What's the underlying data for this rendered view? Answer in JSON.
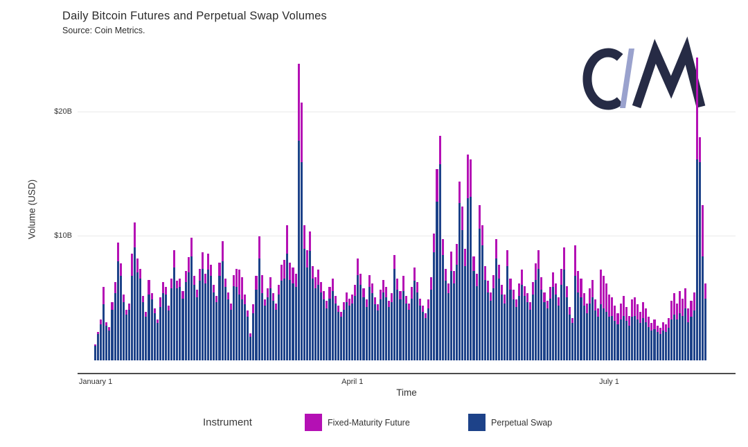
{
  "header": {
    "title": "Daily Bitcoin Futures and Perpetual Swap Volumes",
    "subtitle": "Source: Coin Metrics."
  },
  "logo": {
    "alt": "Coin Metrics monogram",
    "dark_color": "#262b45",
    "slash_color": "#9aa2cd"
  },
  "chart_data": {
    "type": "bar",
    "stacked": true,
    "title": "Daily Bitcoin Futures and Perpetual Swap Volumes",
    "subtitle": "Source: Coin Metrics.",
    "xlabel": "Time",
    "ylabel": "Volume (USD)",
    "unit": "billions of USD per day",
    "grid": "horizontal",
    "ylim": [
      0,
      24.6
    ],
    "x_ticks": [
      {
        "label": "January 1",
        "day_index": 0
      },
      {
        "label": "April 1",
        "day_index": 91
      },
      {
        "label": "July 1",
        "day_index": 182
      }
    ],
    "y_ticks": [
      {
        "label": "$10B",
        "value": 10
      },
      {
        "label": "$20B",
        "value": 20
      }
    ],
    "legend_title": "Instrument",
    "legend_position": "bottom",
    "series": [
      {
        "name": "Fixed-Maturity Future",
        "color": "#b410b4",
        "values": [
          0.1,
          0.2,
          0.4,
          1.4,
          0.3,
          0.3,
          0.6,
          0.9,
          1.5,
          1.0,
          0.6,
          0.4,
          0.5,
          1.8,
          2.0,
          1.1,
          0.8,
          0.5,
          0.4,
          1.2,
          0.5,
          0.4,
          0.3,
          0.8,
          0.9,
          0.6,
          0.4,
          0.8,
          1.4,
          0.6,
          0.7,
          0.6,
          0.9,
          1.2,
          1.5,
          0.7,
          0.6,
          1.0,
          1.3,
          0.8,
          1.3,
          0.9,
          0.6,
          0.5,
          1.1,
          1.6,
          0.7,
          0.6,
          0.5,
          0.9,
          1.5,
          2.0,
          1.8,
          0.8,
          0.5,
          0.3,
          0.7,
          1.1,
          1.8,
          1.5,
          0.5,
          0.7,
          0.9,
          0.6,
          0.5,
          0.8,
          1.3,
          1.5,
          2.3,
          1.4,
          1.3,
          1.1,
          6.2,
          4.8,
          1.9,
          1.4,
          1.6,
          1.0,
          0.9,
          1.2,
          0.8,
          0.7,
          0.6,
          0.9,
          1.0,
          0.6,
          0.5,
          0.4,
          0.6,
          0.8,
          0.6,
          0.7,
          0.9,
          1.3,
          0.9,
          0.7,
          0.6,
          1.0,
          0.8,
          0.6,
          0.5,
          0.8,
          1.0,
          0.8,
          0.5,
          0.7,
          1.1,
          0.9,
          0.7,
          1.2,
          0.6,
          0.5,
          0.9,
          1.1,
          0.8,
          0.6,
          0.5,
          0.4,
          0.7,
          1.0,
          1.5,
          2.6,
          2.3,
          1.3,
          1.0,
          0.8,
          1.6,
          1.0,
          1.7,
          1.7,
          1.9,
          1.4,
          3.5,
          3.0,
          1.2,
          1.0,
          1.9,
          1.6,
          1.1,
          0.9,
          0.7,
          1.1,
          1.6,
          1.1,
          0.8,
          0.7,
          1.3,
          0.9,
          0.8,
          0.6,
          1.0,
          1.2,
          0.8,
          0.7,
          0.6,
          1.0,
          1.3,
          1.5,
          1.0,
          0.8,
          0.6,
          0.9,
          1.2,
          0.9,
          0.7,
          1.3,
          1.8,
          0.9,
          0.6,
          0.4,
          2.5,
          1.7,
          1.5,
          1.0,
          0.8,
          1.2,
          1.4,
          0.9,
          0.7,
          2.8,
          2.6,
          2.3,
          1.8,
          1.5,
          1.2,
          0.9,
          1.3,
          1.6,
          1.1,
          0.8,
          1.4,
          1.5,
          1.2,
          0.9,
          1.3,
          1.1,
          0.8,
          0.6,
          0.8,
          0.5,
          0.5,
          0.7,
          0.6,
          0.8,
          1.5,
          1.7,
          1.3,
          1.8,
          1.4,
          1.6,
          1.1,
          1.3,
          1.5,
          8.2,
          2.0,
          4.1,
          1.2
        ]
      },
      {
        "name": "Perpetual Swap",
        "color": "#1d4289",
        "values": [
          1.2,
          2.1,
          2.9,
          4.5,
          2.8,
          2.4,
          4.1,
          5.4,
          8.0,
          6.8,
          4.7,
          3.7,
          4.1,
          6.8,
          9.1,
          7.1,
          6.6,
          4.7,
          3.5,
          5.3,
          4.9,
          3.8,
          3.0,
          4.3,
          5.4,
          5.3,
          4.0,
          5.8,
          7.5,
          5.8,
          5.9,
          5.0,
          6.3,
          7.1,
          8.4,
          6.1,
          5.1,
          6.4,
          7.4,
          6.2,
          7.3,
          6.8,
          5.5,
          4.7,
          6.8,
          8.0,
          5.9,
          4.9,
          4.1,
          6.0,
          5.9,
          5.3,
          4.9,
          4.5,
          3.5,
          1.9,
          3.8,
          5.7,
          8.2,
          5.4,
          4.4,
          5.1,
          5.8,
          4.8,
          4.1,
          5.3,
          6.4,
          6.6,
          8.6,
          6.5,
          6.2,
          5.9,
          17.7,
          16.0,
          9.0,
          7.5,
          8.8,
          6.6,
          5.8,
          6.1,
          5.5,
          4.9,
          4.2,
          5.0,
          5.6,
          4.6,
          3.9,
          3.5,
          4.1,
          4.7,
          4.4,
          4.6,
          5.2,
          6.9,
          6.1,
          5.1,
          4.3,
          5.9,
          5.4,
          4.5,
          4.0,
          4.9,
          5.5,
          5.1,
          4.3,
          4.7,
          7.4,
          5.7,
          4.9,
          5.6,
          4.6,
          4.1,
          5.0,
          6.4,
          5.5,
          4.4,
          3.9,
          3.4,
          4.2,
          5.7,
          8.7,
          12.8,
          15.8,
          8.5,
          6.4,
          5.4,
          7.2,
          6.2,
          7.7,
          12.7,
          10.5,
          7.6,
          13.1,
          13.2,
          7.2,
          6.0,
          10.6,
          9.3,
          6.5,
          5.5,
          4.8,
          5.8,
          8.2,
          6.6,
          5.3,
          4.6,
          7.6,
          5.7,
          4.9,
          4.3,
          5.2,
          6.1,
          5.2,
          4.7,
          4.1,
          5.3,
          6.5,
          7.4,
          5.7,
          4.7,
          4.2,
          5.0,
          5.9,
          5.3,
          4.4,
          6.1,
          7.3,
          5.1,
          3.7,
          3.0,
          6.8,
          5.5,
          5.1,
          4.4,
          3.8,
          4.6,
          5.1,
          4.0,
          3.5,
          4.5,
          4.2,
          3.9,
          3.5,
          3.6,
          3.2,
          2.9,
          3.3,
          3.6,
          3.2,
          2.8,
          3.5,
          3.6,
          3.3,
          3.0,
          3.4,
          3.1,
          2.7,
          2.4,
          2.5,
          2.3,
          2.1,
          2.4,
          2.3,
          2.6,
          3.3,
          3.7,
          3.3,
          3.8,
          3.6,
          4.2,
          3.1,
          3.5,
          4.0,
          16.2,
          16.0,
          8.4,
          5.0
        ]
      }
    ]
  }
}
